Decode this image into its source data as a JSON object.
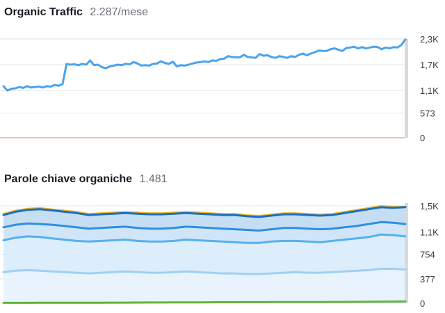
{
  "colors": {
    "traffic_line": "#4aa3ec",
    "zero_line": "#f2a58a",
    "kw_top3": "#f0b429",
    "kw_4_10": "#1a6fbf",
    "kw_11_20": "#2f8fe0",
    "kw_21_50": "#55b0ef",
    "kw_51_100": "#9fd0f5",
    "kw_serp": "#5fb53a",
    "grid": "#e3e4e8"
  },
  "chart_data": [
    {
      "type": "line",
      "title": "Organic Traffic",
      "subtitle": "2.287/mese",
      "ylim": [
        0,
        2300
      ],
      "yticks": [
        {
          "value": 2300,
          "label": "2,3K"
        },
        {
          "value": 1700,
          "label": "1,7K"
        },
        {
          "value": 1100,
          "label": "1,1K"
        },
        {
          "value": 573,
          "label": "573"
        },
        {
          "value": 0,
          "label": "0"
        }
      ],
      "grid": true,
      "series": [
        {
          "color_key": "traffic_line",
          "values": [
            1200,
            1100,
            1140,
            1150,
            1180,
            1160,
            1200,
            1170,
            1180,
            1190,
            1170,
            1200,
            1190,
            1230,
            1210,
            1250,
            1720,
            1700,
            1710,
            1690,
            1720,
            1700,
            1800,
            1690,
            1700,
            1640,
            1620,
            1660,
            1680,
            1700,
            1690,
            1720,
            1710,
            1760,
            1730,
            1680,
            1690,
            1680,
            1720,
            1730,
            1780,
            1740,
            1720,
            1770,
            1660,
            1690,
            1680,
            1700,
            1730,
            1750,
            1760,
            1780,
            1760,
            1800,
            1790,
            1830,
            1840,
            1900,
            1880,
            1870,
            1870,
            1930,
            1880,
            1870,
            1860,
            1950,
            1910,
            1920,
            1880,
            1860,
            1900,
            1880,
            1860,
            1900,
            1880,
            1930,
            1960,
            1920,
            1960,
            1990,
            2030,
            2020,
            2020,
            2060,
            2080,
            2050,
            2020,
            2090,
            2100,
            2120,
            2080,
            2110,
            2080,
            2100,
            2120,
            2110,
            2060,
            2100,
            2080,
            2110,
            2100,
            2160,
            2287
          ]
        },
        {
          "color_key": "zero_line",
          "values": [
            0,
            0
          ]
        }
      ]
    },
    {
      "type": "area",
      "title": "Parole chiave organiche",
      "subtitle": "1.481",
      "ylim": [
        0,
        1500
      ],
      "yticks": [
        {
          "value": 1500,
          "label": "1,5K"
        },
        {
          "value": 1100,
          "label": "1,1K"
        },
        {
          "value": 754,
          "label": "754"
        },
        {
          "value": 377,
          "label": "377"
        },
        {
          "value": 0,
          "label": "0"
        }
      ],
      "grid": true,
      "series": [
        {
          "color_key": "kw_top3",
          "values": [
            1380,
            1430,
            1460,
            1470,
            1450,
            1430,
            1410,
            1380,
            1390,
            1400,
            1410,
            1400,
            1390,
            1390,
            1400,
            1410,
            1400,
            1390,
            1380,
            1380,
            1360,
            1350,
            1370,
            1390,
            1390,
            1380,
            1370,
            1380,
            1410,
            1440,
            1470,
            1500,
            1490,
            1490
          ]
        },
        {
          "value_note": "",
          "color_key": "kw_4_10",
          "values": [
            1360,
            1410,
            1440,
            1450,
            1430,
            1410,
            1390,
            1360,
            1370,
            1380,
            1390,
            1380,
            1370,
            1370,
            1380,
            1390,
            1380,
            1370,
            1360,
            1360,
            1340,
            1330,
            1350,
            1370,
            1370,
            1360,
            1350,
            1360,
            1390,
            1420,
            1450,
            1480,
            1470,
            1481
          ]
        },
        {
          "color_key": "kw_11_20",
          "values": [
            1170,
            1210,
            1230,
            1220,
            1210,
            1190,
            1170,
            1150,
            1160,
            1170,
            1180,
            1160,
            1150,
            1150,
            1160,
            1180,
            1170,
            1160,
            1150,
            1140,
            1130,
            1120,
            1140,
            1160,
            1160,
            1150,
            1140,
            1150,
            1170,
            1190,
            1220,
            1250,
            1240,
            1220
          ]
        },
        {
          "color_key": "kw_21_50",
          "values": [
            970,
            1010,
            1030,
            1020,
            1000,
            980,
            960,
            950,
            960,
            970,
            980,
            960,
            950,
            950,
            960,
            980,
            970,
            960,
            950,
            940,
            930,
            930,
            950,
            960,
            960,
            950,
            940,
            960,
            980,
            1000,
            1020,
            1060,
            1050,
            1030
          ]
        },
        {
          "color_key": "kw_51_100",
          "values": [
            480,
            500,
            510,
            500,
            490,
            480,
            470,
            460,
            470,
            480,
            490,
            480,
            470,
            470,
            480,
            490,
            480,
            470,
            460,
            460,
            450,
            450,
            460,
            470,
            480,
            470,
            470,
            480,
            490,
            500,
            510,
            530,
            530,
            520
          ]
        },
        {
          "color_key": "kw_serp",
          "values": [
            6,
            6,
            6,
            7,
            7,
            7,
            8,
            8,
            9,
            10,
            10,
            11,
            12,
            12,
            13,
            14,
            14,
            15,
            16,
            16,
            17,
            17,
            18,
            18,
            18,
            19,
            19,
            20,
            20,
            21,
            22,
            24,
            26,
            28
          ]
        }
      ]
    }
  ]
}
